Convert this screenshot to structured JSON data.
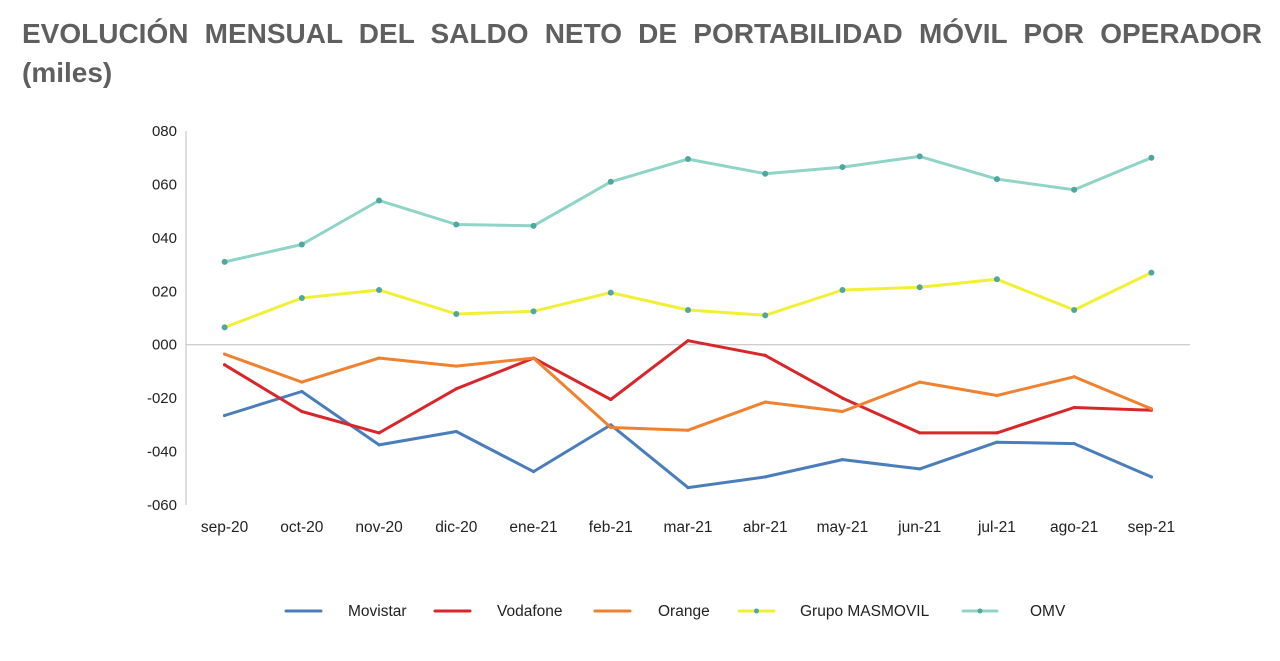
{
  "title": "EVOLUCIÓN MENSUAL DEL SALDO NETO DE PORTABILIDAD MÓVIL POR OPERADOR (miles)",
  "chart_data": {
    "type": "line",
    "title": "EVOLUCIÓN MENSUAL DEL SALDO NETO DE PORTABILIDAD MÓVIL POR OPERADOR (miles)",
    "xlabel": "",
    "ylabel": "",
    "categories": [
      "sep-20",
      "oct-20",
      "nov-20",
      "dic-20",
      "ene-21",
      "feb-21",
      "mar-21",
      "abr-21",
      "may-21",
      "jun-21",
      "jul-21",
      "ago-21",
      "sep-21"
    ],
    "ylim": [
      -60,
      80
    ],
    "yticks": [
      80,
      60,
      40,
      20,
      0,
      -20,
      -40,
      -60
    ],
    "ytick_labels": [
      "080",
      "060",
      "040",
      "020",
      "000",
      "-020",
      "-040",
      "-060"
    ],
    "grid": false,
    "zero_line": true,
    "legend_position": "bottom",
    "series": [
      {
        "name": "Movistar",
        "color": "#4a7ebb",
        "marker": false,
        "values": [
          -26.5,
          -17.5,
          -37.5,
          -32.5,
          -47.5,
          -30,
          -53.5,
          -49.5,
          -43,
          -46.5,
          -36.5,
          -37,
          -49.5
        ]
      },
      {
        "name": "Vodafone",
        "color": "#d8262a",
        "marker": false,
        "values": [
          -7.5,
          -25,
          -33,
          -16.5,
          -5,
          -20.5,
          1.5,
          -4,
          -20,
          -33,
          -33,
          -23.5,
          -24.5
        ]
      },
      {
        "name": "Orange",
        "color": "#f0812f",
        "marker": false,
        "values": [
          -3.5,
          -14,
          -5,
          -8,
          -5,
          -31,
          -32,
          -21.5,
          -25,
          -14,
          -19,
          -12,
          -24
        ]
      },
      {
        "name": "Grupo MASMOVIL",
        "color": "#f2f035",
        "marker": true,
        "values": [
          6.5,
          17.5,
          20.5,
          11.5,
          12.5,
          19.5,
          13,
          11,
          20.5,
          21.5,
          24.5,
          13,
          27
        ]
      },
      {
        "name": "OMV",
        "color": "#8fd4c6",
        "marker": true,
        "values": [
          31,
          37.5,
          54,
          45,
          44.5,
          61,
          69.5,
          64,
          66.5,
          70.5,
          62,
          58,
          70
        ]
      }
    ]
  }
}
